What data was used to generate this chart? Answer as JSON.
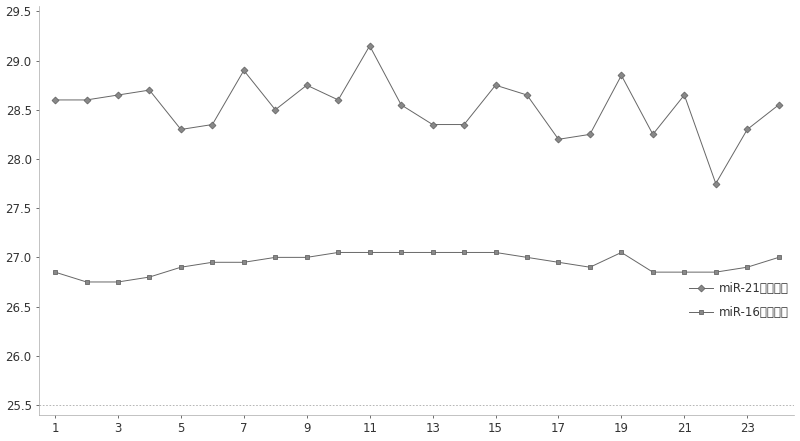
{
  "x": [
    1,
    2,
    3,
    4,
    5,
    6,
    7,
    8,
    9,
    10,
    11,
    12,
    13,
    14,
    15,
    16,
    17,
    18,
    19,
    20,
    21,
    22,
    23,
    24
  ],
  "mir21": [
    28.6,
    28.6,
    28.65,
    28.7,
    28.3,
    28.35,
    28.9,
    28.5,
    28.75,
    28.6,
    29.15,
    28.55,
    28.35,
    28.35,
    28.75,
    28.65,
    28.2,
    28.25,
    28.85,
    28.25,
    28.65,
    27.75,
    28.3,
    28.55
  ],
  "mir16": [
    26.85,
    26.75,
    26.75,
    26.8,
    26.9,
    26.95,
    26.95,
    27.0,
    27.0,
    27.05,
    27.05,
    27.05,
    27.05,
    27.05,
    27.05,
    27.0,
    26.95,
    26.9,
    27.05,
    26.85,
    26.85,
    26.85,
    26.9,
    27.0
  ],
  "xticks": [
    1,
    3,
    5,
    7,
    9,
    11,
    13,
    15,
    17,
    19,
    21,
    23
  ],
  "yticks": [
    25.5,
    26.0,
    26.5,
    27.0,
    27.5,
    28.0,
    28.5,
    29.0,
    29.5
  ],
  "ylim": [
    25.4,
    29.55
  ],
  "xlim": [
    0.5,
    24.5
  ],
  "legend_mir21": "miR-21批内差异",
  "legend_mir16": "miR-16批内差异",
  "line_color": "#666666",
  "marker_color": "#888888",
  "bg_color": "#ffffff"
}
